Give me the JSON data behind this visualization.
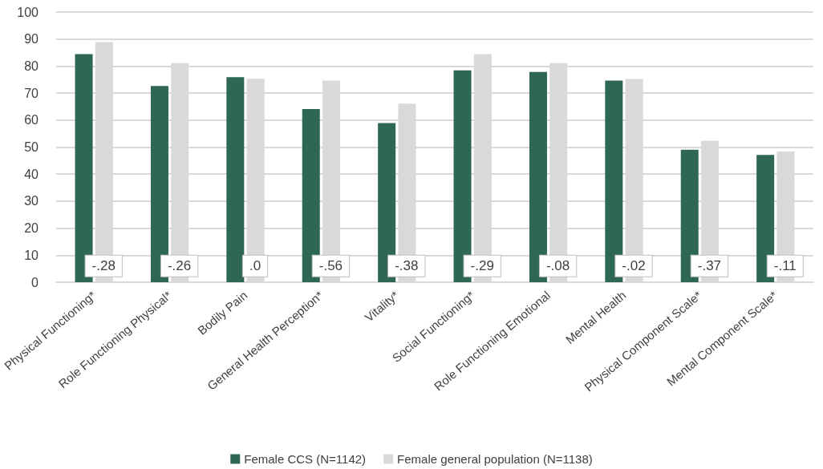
{
  "chart_data": {
    "type": "bar",
    "categories": [
      "Physical Functioning*",
      "Role Functioning Physical*",
      "Bodily Pain",
      "General Health Perception*",
      "Vitality*",
      "Social Functioning*",
      "Role Functioning Emotional",
      "Mental Health",
      "Physical Component Scale*",
      "Mental Component Scale*"
    ],
    "series": [
      {
        "name": "Female CCS (N=1142)",
        "color": "#2e6852",
        "values": [
          84.4,
          72.6,
          75.9,
          64.1,
          58.9,
          78.4,
          77.8,
          74.6,
          49.0,
          47.1
        ]
      },
      {
        "name": "Female general population (N=1138)",
        "color": "#d9d9d9",
        "values": [
          88.9,
          81.1,
          75.3,
          74.6,
          66.1,
          84.4,
          81.1,
          75.2,
          52.4,
          48.4
        ]
      }
    ],
    "ylim": [
      0,
      100
    ],
    "yticks": [
      0,
      10,
      20,
      30,
      40,
      50,
      60,
      70,
      80,
      90,
      100
    ],
    "grid": "y",
    "legend": "bottom",
    "annotations": [
      {
        "text": "-.28",
        "x": "Physical Functioning*",
        "y": 6
      },
      {
        "text": "-.26",
        "x": "Role Functioning Physical*",
        "y": 6
      },
      {
        "text": ".0",
        "x": "Bodily Pain",
        "y": 6
      },
      {
        "text": "-.56",
        "x": "General Health Perception*",
        "y": 6
      },
      {
        "text": "-.38",
        "x": "Vitality*",
        "y": 6
      },
      {
        "text": "-.29",
        "x": "Social Functioning*",
        "y": 6
      },
      {
        "text": "-.08",
        "x": "Role Functioning Emotional",
        "y": 6
      },
      {
        "text": "-.02",
        "x": "Mental Health",
        "y": 6
      },
      {
        "text": "-.37",
        "x": "Physical Component Scale*",
        "y": 6
      },
      {
        "text": "-.11",
        "x": "Mental Component Scale*",
        "y": 6
      }
    ]
  }
}
